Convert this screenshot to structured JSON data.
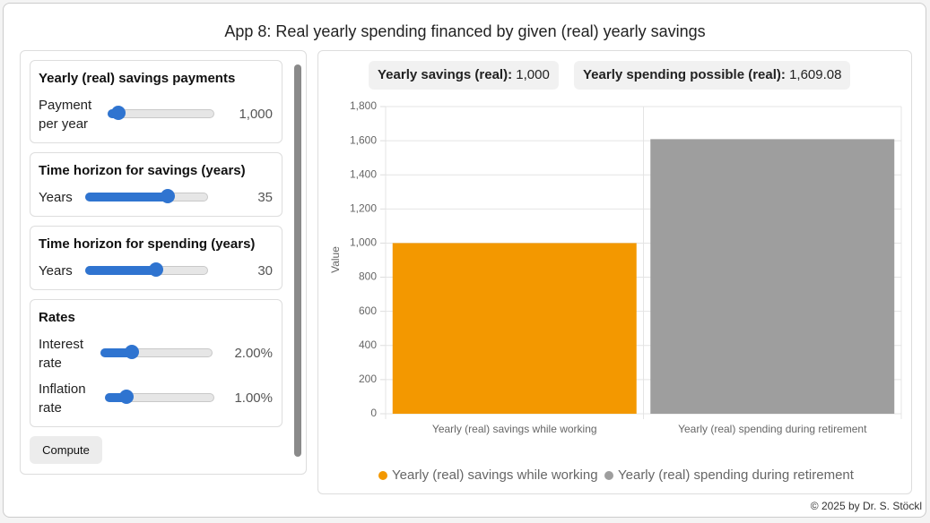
{
  "title": "App 8: Real yearly spending financed by given (real) yearly savings",
  "panels": [
    {
      "title": "Yearly (real) savings payments",
      "controls": [
        {
          "label": "Payment per year",
          "value": "1,000"
        }
      ]
    },
    {
      "title": "Time horizon for savings (years)",
      "controls": [
        {
          "label": "Years",
          "value": "35"
        }
      ]
    },
    {
      "title": "Time horizon for spending (years)",
      "controls": [
        {
          "label": "Years",
          "value": "30"
        }
      ]
    },
    {
      "title": "Rates",
      "controls": [
        {
          "label": "Interest rate",
          "value": "2.00%"
        },
        {
          "label": "Inflation rate",
          "value": "1.00%"
        }
      ]
    }
  ],
  "button": "Compute",
  "summary": [
    {
      "label": "Yearly savings (real):",
      "value": "1,000"
    },
    {
      "label": "Yearly spending possible (real):",
      "value": "1,609.08"
    }
  ],
  "footer": "© 2025 by Dr. S. Stöckl",
  "chart_data": {
    "type": "bar",
    "ylabel": "Value",
    "categories": [
      "Yearly (real) savings while working",
      "Yearly (real) spending during retirement"
    ],
    "values": [
      1000,
      1609.08
    ],
    "colors": [
      "#f39800",
      "#9e9e9e"
    ],
    "ylim": [
      0,
      1800
    ],
    "yticks": [
      0,
      200,
      400,
      600,
      800,
      {
        "value": 1000,
        "label": "1,000"
      },
      {
        "value": 1200,
        "label": "1,200"
      },
      {
        "value": 1400,
        "label": "1,400"
      },
      {
        "value": 1600,
        "label": "1,600"
      },
      {
        "value": 1800,
        "label": "1,800"
      }
    ],
    "grid": true,
    "legend": "bottom"
  }
}
